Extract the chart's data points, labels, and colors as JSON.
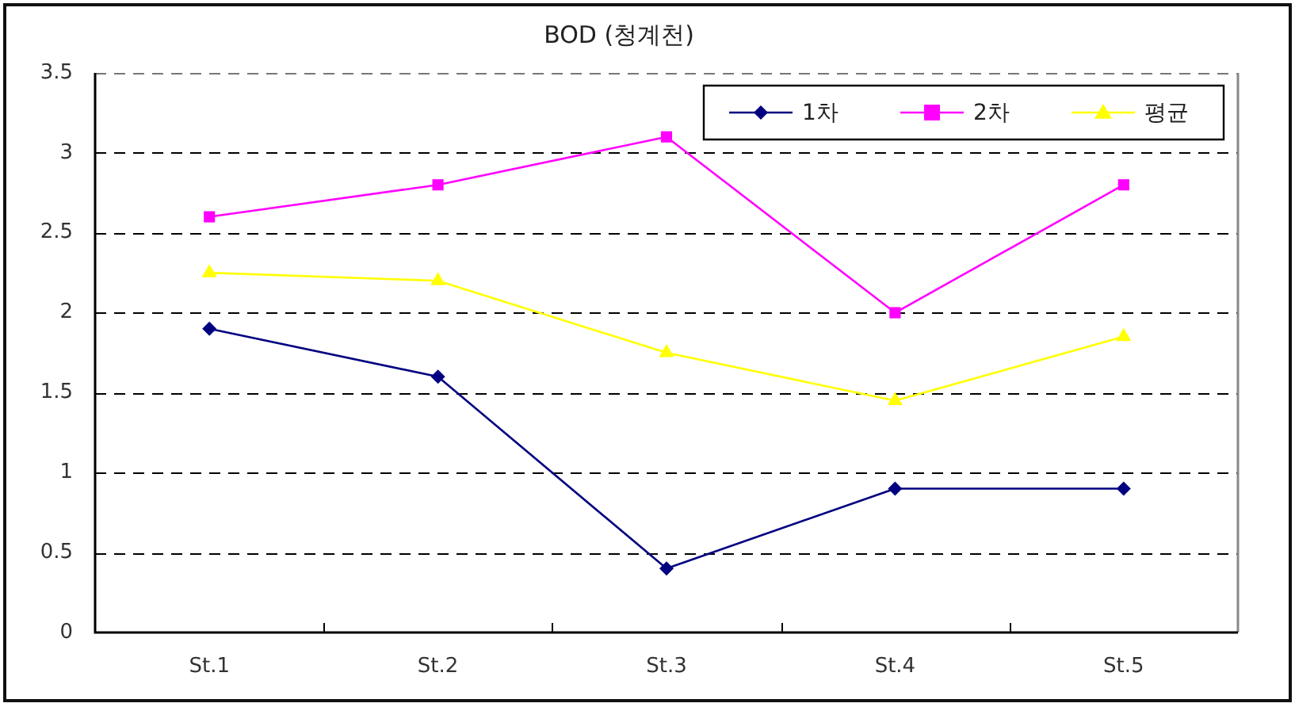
{
  "chart_data": {
    "type": "line",
    "title": "BOD (청계천)",
    "categories": [
      "St.1",
      "St.2",
      "St.3",
      "St.4",
      "St.5"
    ],
    "series": [
      {
        "name": "1차",
        "color": "#000080",
        "marker": "diamond",
        "values": [
          1.9,
          1.6,
          0.4,
          0.9,
          0.9
        ]
      },
      {
        "name": "2차",
        "color": "#ff00ff",
        "marker": "square",
        "values": [
          2.6,
          2.8,
          3.1,
          2.0,
          2.8
        ]
      },
      {
        "name": "평균",
        "color": "#ffff00",
        "marker": "triangle",
        "values": [
          2.25,
          2.2,
          1.75,
          1.45,
          1.85
        ]
      }
    ],
    "ylim": [
      0,
      3.5
    ],
    "yticks": [
      0,
      0.5,
      1,
      1.5,
      2,
      2.5,
      3,
      3.5
    ],
    "grid": "y",
    "legend": "top right",
    "line_style": "solid"
  }
}
